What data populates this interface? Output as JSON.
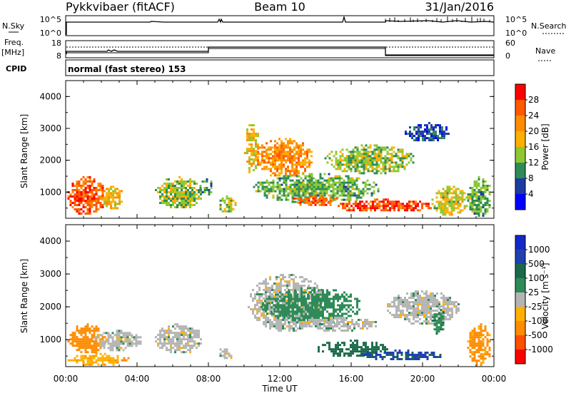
{
  "header": {
    "title": "Pykkvibaer (fitACF)",
    "beam": "Beam 10",
    "date": "31/Jan/2016"
  },
  "params": {
    "nsky_label": "N.Sky",
    "nsky_ticks": [
      "10^5",
      "10^0"
    ],
    "nsearch_label": "N.Search",
    "nsearch_ticks": [
      "10^5",
      "10^0"
    ],
    "freq_label": "Freq.",
    "freq_unit": "[MHz]",
    "freq_ticks": [
      "18",
      "8"
    ],
    "nave_label": "Nave",
    "nave_ticks": [
      "60",
      "0"
    ],
    "cpid_label": "CPID",
    "cpid_text": "normal (fast stereo) 153"
  },
  "axes": {
    "ylabel": "Slant Range [km]",
    "xlabel": "Time UT",
    "yticks": [
      "4000",
      "3000",
      "2000",
      "1000"
    ],
    "xticks": [
      "00:00",
      "04:00",
      "08:00",
      "12:00",
      "16:00",
      "20:00",
      "00:00"
    ]
  },
  "power_colorbar": {
    "label": "Power [dB]",
    "ticks": [
      "28",
      "24",
      "20",
      "16",
      "12",
      "8",
      "4"
    ],
    "colors": [
      "#ff0000",
      "#ff5a00",
      "#ff8c00",
      "#ffb000",
      "#8cc832",
      "#2e8b57",
      "#1e3ca0",
      "#0000ff"
    ]
  },
  "velocity_colorbar": {
    "label": "Velocity [m s⁻¹]",
    "ticks": [
      "1000",
      "500",
      "100",
      "25",
      "-25",
      "-100",
      "-500",
      "-1000"
    ],
    "colors": [
      "#1428c8",
      "#2040b0",
      "#1a6a4a",
      "#2e8b57",
      "#b4b4b4",
      "#ffb000",
      "#ff8c00",
      "#ff5000",
      "#ff0000"
    ]
  },
  "chart_data": [
    {
      "type": "heatmap",
      "name": "Power",
      "x_range_hours": [
        0,
        24
      ],
      "y_range_km": [
        180,
        4500
      ],
      "cbar_range_db": [
        0,
        32
      ],
      "blobs": [
        {
          "t0": 0.1,
          "t1": 2.2,
          "r0": 300,
          "r1": 1500,
          "v": 26
        },
        {
          "t0": 2.0,
          "t1": 3.2,
          "r0": 500,
          "r1": 1200,
          "v": 18
        },
        {
          "t0": 5.0,
          "t1": 7.6,
          "r0": 500,
          "r1": 1500,
          "v": 14
        },
        {
          "t0": 7.5,
          "t1": 8.2,
          "r0": 900,
          "r1": 1500,
          "v": 10
        },
        {
          "t0": 8.5,
          "t1": 9.5,
          "r0": 400,
          "r1": 900,
          "v": 14
        },
        {
          "t0": 10.0,
          "t1": 10.8,
          "r0": 1600,
          "r1": 3200,
          "v": 18
        },
        {
          "t0": 10.6,
          "t1": 13.8,
          "r0": 1500,
          "r1": 2700,
          "v": 22
        },
        {
          "t0": 10.5,
          "t1": 17.5,
          "r0": 700,
          "r1": 1600,
          "v": 12
        },
        {
          "t0": 12.5,
          "t1": 15.5,
          "r0": 600,
          "r1": 900,
          "v": 25
        },
        {
          "t0": 15.0,
          "t1": 20.6,
          "r0": 400,
          "r1": 800,
          "v": 27
        },
        {
          "t0": 14.5,
          "t1": 19.5,
          "r0": 1600,
          "r1": 2500,
          "v": 14
        },
        {
          "t0": 19.0,
          "t1": 21.5,
          "r0": 2600,
          "r1": 3200,
          "v": 6
        },
        {
          "t0": 20.5,
          "t1": 22.5,
          "r0": 300,
          "r1": 1200,
          "v": 16
        },
        {
          "t0": 22.5,
          "t1": 23.8,
          "r0": 250,
          "r1": 1500,
          "v": 12
        }
      ]
    },
    {
      "type": "heatmap",
      "name": "Velocity",
      "x_range_hours": [
        0,
        24
      ],
      "y_range_km": [
        180,
        4500
      ],
      "cbar_range_ms": [
        -1000,
        1000
      ],
      "blobs": [
        {
          "t0": 0.1,
          "t1": 2.2,
          "r0": 600,
          "r1": 1500,
          "v": -150
        },
        {
          "t0": 1.5,
          "t1": 4.2,
          "r0": 700,
          "r1": 1300,
          "v": 0
        },
        {
          "t0": 0.1,
          "t1": 3.5,
          "r0": 250,
          "r1": 600,
          "v": -80
        },
        {
          "t0": 5.0,
          "t1": 7.6,
          "r0": 600,
          "r1": 1500,
          "v": 0
        },
        {
          "t0": 8.5,
          "t1": 9.3,
          "r0": 400,
          "r1": 800,
          "v": 0
        },
        {
          "t0": 10.2,
          "t1": 14.5,
          "r0": 1300,
          "r1": 3000,
          "v": 0
        },
        {
          "t0": 11.0,
          "t1": 16.5,
          "r0": 1500,
          "r1": 2600,
          "v": 60
        },
        {
          "t0": 13.0,
          "t1": 17.5,
          "r0": 1300,
          "r1": 1700,
          "v": 0
        },
        {
          "t0": 14.0,
          "t1": 18.0,
          "r0": 500,
          "r1": 1000,
          "v": 160
        },
        {
          "t0": 16.5,
          "t1": 21.0,
          "r0": 400,
          "r1": 700,
          "v": 600
        },
        {
          "t0": 18.0,
          "t1": 22.0,
          "r0": 1500,
          "r1": 2500,
          "v": 0
        },
        {
          "t0": 20.5,
          "t1": 21.2,
          "r0": 1200,
          "r1": 2000,
          "v": 80
        },
        {
          "t0": 22.5,
          "t1": 23.8,
          "r0": 250,
          "r1": 1500,
          "v": -120
        }
      ]
    }
  ]
}
